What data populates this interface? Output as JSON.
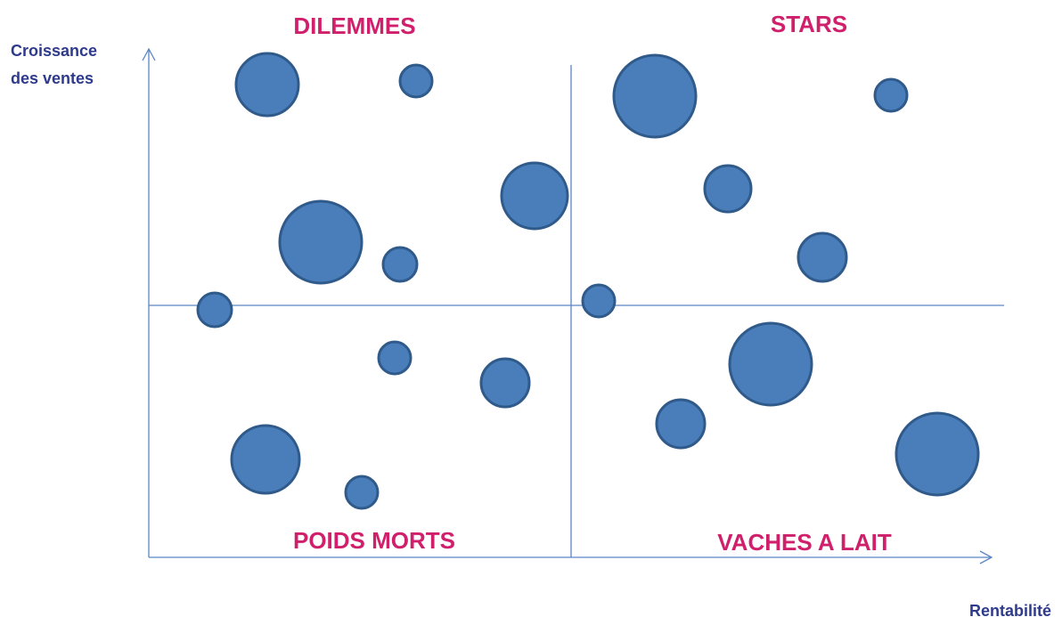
{
  "axes": {
    "y_label_lines": [
      "Croissance",
      "des ventes"
    ],
    "x_label": "Rentabilité"
  },
  "quadrants": {
    "top_left": "DILEMMES",
    "top_right": "STARS",
    "bottom_left": "POIDS MORTS",
    "bottom_right": "VACHES A LAIT"
  }
}
